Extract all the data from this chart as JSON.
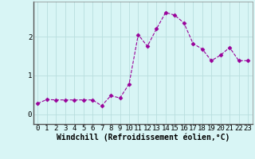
{
  "x": [
    0,
    1,
    2,
    3,
    4,
    5,
    6,
    7,
    8,
    9,
    10,
    11,
    12,
    13,
    14,
    15,
    16,
    17,
    18,
    19,
    20,
    21,
    22,
    23
  ],
  "y": [
    0.28,
    0.38,
    0.37,
    0.37,
    0.37,
    0.37,
    0.37,
    0.22,
    0.48,
    0.42,
    0.78,
    2.05,
    1.75,
    2.2,
    2.62,
    2.55,
    2.35,
    1.82,
    1.68,
    1.38,
    1.52,
    1.72,
    1.38,
    1.38
  ],
  "line_color": "#990099",
  "marker": "D",
  "marker_size": 2.5,
  "xlabel": "Windchill (Refroidissement éolien,°C)",
  "xlabel_fontsize": 7,
  "xtick_labels": [
    "0",
    "1",
    "2",
    "3",
    "4",
    "5",
    "6",
    "7",
    "8",
    "9",
    "10",
    "11",
    "12",
    "13",
    "14",
    "15",
    "16",
    "17",
    "18",
    "19",
    "20",
    "21",
    "22",
    "23"
  ],
  "ytick_vals": [
    0,
    1,
    2
  ],
  "xlim": [
    -0.5,
    23.5
  ],
  "ylim": [
    -0.25,
    2.9
  ],
  "bg_color": "#d8f5f5",
  "grid_color": "#b8dede",
  "tick_fontsize": 6.5,
  "spine_color": "#888888"
}
